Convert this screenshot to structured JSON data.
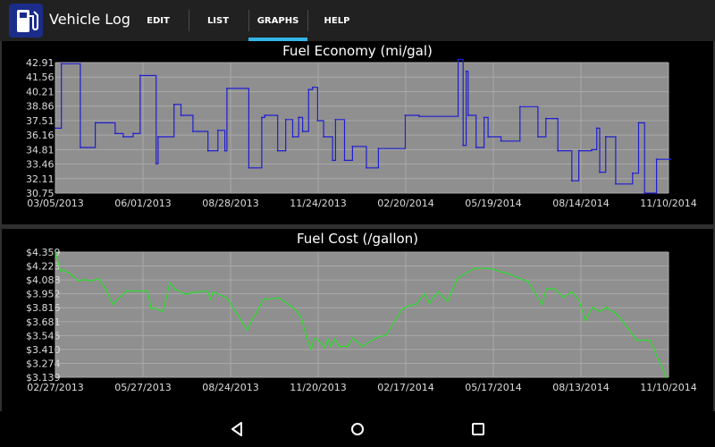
{
  "app": {
    "title": "Vehicle Log",
    "icon": "fuel-pump-icon"
  },
  "tabs": [
    {
      "label": "EDIT",
      "selected": false
    },
    {
      "label": "LIST",
      "selected": false
    },
    {
      "label": "GRAPHS",
      "selected": true
    },
    {
      "label": "HELP",
      "selected": false
    }
  ],
  "colors": {
    "action_bar": "#212121",
    "tab_indicator": "#33b5e5",
    "plot_background": "#8f8f8f",
    "gridline": "#a9a9a9",
    "economy_line": "#1f1fd0",
    "cost_line": "#2edc2e"
  },
  "chart_data": [
    {
      "type": "line",
      "title": "Fuel Economy (mi/gal)",
      "line_style": "step",
      "color": "#1f1fd0",
      "x_tick_labels": [
        "03/05/2013",
        "06/01/2013",
        "08/28/2013",
        "11/24/2013",
        "02/20/2014",
        "05/19/2014",
        "08/14/2014",
        "11/10/2014"
      ],
      "y_tick_labels": [
        "30.75",
        "32.11",
        "33.46",
        "34.81",
        "36.16",
        "37.51",
        "38.86",
        "40.21",
        "41.56",
        "42.91"
      ],
      "xlim": [
        "2013-03-05",
        "2014-11-10"
      ],
      "ylim": [
        30.75,
        42.91
      ],
      "grid": true,
      "x": [
        "2013-03-05",
        "2013-03-11",
        "2013-03-30",
        "2013-04-14",
        "2013-05-04",
        "2013-05-12",
        "2013-05-22",
        "2013-05-29",
        "2013-06-14",
        "2013-06-16",
        "2013-07-02",
        "2013-07-09",
        "2013-07-21",
        "2013-08-05",
        "2013-08-15",
        "2013-08-22",
        "2013-08-24",
        "2013-09-15",
        "2013-09-28",
        "2013-10-01",
        "2013-10-14",
        "2013-10-22",
        "2013-10-29",
        "2013-11-04",
        "2013-11-08",
        "2013-11-14",
        "2013-11-18",
        "2013-11-23",
        "2013-11-29",
        "2013-12-08",
        "2013-12-11",
        "2013-12-20",
        "2013-12-28",
        "2014-01-11",
        "2014-01-23",
        "2014-02-19",
        "2014-03-05",
        "2014-04-13",
        "2014-04-18",
        "2014-04-21",
        "2014-04-23",
        "2014-05-01",
        "2014-05-09",
        "2014-05-13",
        "2014-05-26",
        "2014-06-14",
        "2014-07-02",
        "2014-07-10",
        "2014-07-22",
        "2014-08-05",
        "2014-08-12",
        "2014-08-25",
        "2014-08-30",
        "2014-09-02",
        "2014-09-08",
        "2014-09-18",
        "2014-10-05",
        "2014-10-11",
        "2014-10-17",
        "2014-10-29",
        "2014-11-12"
      ],
      "y": [
        36.8,
        42.8,
        35.0,
        37.3,
        36.3,
        36.0,
        36.3,
        41.7,
        33.5,
        36.0,
        39.0,
        38.0,
        36.5,
        34.7,
        36.6,
        34.7,
        40.5,
        33.1,
        37.8,
        38.0,
        34.7,
        37.6,
        36.0,
        37.8,
        36.5,
        40.4,
        40.6,
        37.5,
        36.0,
        33.8,
        37.6,
        33.8,
        35.1,
        33.1,
        34.9,
        38.0,
        37.9,
        43.2,
        35.2,
        42.1,
        38.0,
        35.0,
        37.8,
        36.0,
        35.6,
        38.8,
        36.0,
        37.7,
        34.7,
        31.9,
        34.7,
        34.8,
        36.8,
        32.7,
        36.0,
        31.6,
        32.6,
        37.3,
        30.75,
        33.9,
        33.9
      ]
    },
    {
      "type": "line",
      "title": "Fuel Cost (/gallon)",
      "color": "#2edc2e",
      "x_tick_labels": [
        "02/27/2013",
        "05/27/2013",
        "08/24/2013",
        "11/20/2013",
        "02/17/2014",
        "05/17/2014",
        "08/13/2014",
        "11/10/2014"
      ],
      "y_tick_labels": [
        "$3.139",
        "$3.274",
        "$3.410",
        "$3.545",
        "$3.681",
        "$3.816",
        "$3.952",
        "$4.088",
        "$4.223",
        "$4.359"
      ],
      "xlim": [
        "2013-02-27",
        "2014-11-10"
      ],
      "ylim": [
        3.139,
        4.359
      ],
      "grid": true,
      "x": [
        "2013-02-27",
        "2013-03-04",
        "2013-03-08",
        "2013-03-15",
        "2013-03-22",
        "2013-03-29",
        "2013-04-05",
        "2013-04-12",
        "2013-04-19",
        "2013-04-26",
        "2013-05-10",
        "2013-05-31",
        "2013-06-04",
        "2013-06-08",
        "2013-06-16",
        "2013-06-23",
        "2013-06-28",
        "2013-07-08",
        "2013-07-20",
        "2013-07-31",
        "2013-08-03",
        "2013-08-06",
        "2013-08-20",
        "2013-09-09",
        "2013-09-26",
        "2013-10-12",
        "2013-10-28",
        "2013-11-03",
        "2013-11-08",
        "2013-11-13",
        "2013-11-16",
        "2013-11-19",
        "2013-11-27",
        "2013-11-30",
        "2013-12-03",
        "2013-12-07",
        "2013-12-12",
        "2013-12-20",
        "2013-12-25",
        "2014-01-04",
        "2014-01-17",
        "2014-01-28",
        "2014-02-13",
        "2014-02-18",
        "2014-02-27",
        "2014-03-08",
        "2014-03-13",
        "2014-03-17",
        "2014-03-22",
        "2014-03-31",
        "2014-04-10",
        "2014-04-27",
        "2014-05-13",
        "2014-05-31",
        "2014-06-21",
        "2014-07-05",
        "2014-07-09",
        "2014-07-13",
        "2014-07-18",
        "2014-07-26",
        "2014-08-04",
        "2014-08-11",
        "2014-08-18",
        "2014-08-25",
        "2014-09-02",
        "2014-09-08",
        "2014-09-16",
        "2014-09-21",
        "2014-09-29",
        "2014-10-09",
        "2014-10-22",
        "2014-11-08"
      ],
      "y": [
        4.36,
        4.18,
        4.18,
        4.14,
        4.08,
        4.09,
        4.08,
        4.1,
        4.0,
        3.85,
        3.98,
        3.98,
        3.81,
        3.81,
        3.78,
        4.06,
        4.0,
        3.95,
        3.97,
        3.98,
        3.9,
        3.97,
        3.91,
        3.6,
        3.9,
        3.91,
        3.8,
        3.72,
        3.54,
        3.41,
        3.51,
        3.51,
        3.43,
        3.51,
        3.44,
        3.51,
        3.44,
        3.44,
        3.52,
        3.44,
        3.52,
        3.55,
        3.8,
        3.83,
        3.85,
        3.95,
        3.86,
        3.92,
        3.97,
        3.88,
        4.1,
        4.2,
        4.2,
        4.15,
        4.07,
        3.85,
        4.0,
        4.0,
        4.0,
        3.92,
        3.97,
        3.9,
        3.69,
        3.82,
        3.78,
        3.82,
        3.77,
        3.73,
        3.63,
        3.5,
        3.5,
        3.14
      ]
    }
  ]
}
